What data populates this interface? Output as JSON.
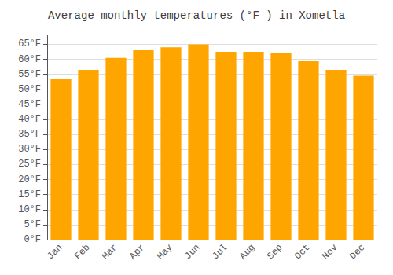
{
  "chart_data": {
    "type": "bar",
    "title": "Average monthly temperatures (°F ) in Xometla",
    "categories": [
      "Jan",
      "Feb",
      "Mar",
      "Apr",
      "May",
      "Jun",
      "Jul",
      "Aug",
      "Sep",
      "Oct",
      "Nov",
      "Dec"
    ],
    "values": [
      53.5,
      56.5,
      60.5,
      63.0,
      64.0,
      65.0,
      62.5,
      62.5,
      62.0,
      59.5,
      56.5,
      54.5
    ],
    "color": "#FFA500",
    "ylim": [
      0,
      68
    ],
    "yticks": [
      {
        "value": 0,
        "label": "0°F"
      },
      {
        "value": 5,
        "label": "5°F"
      },
      {
        "value": 10,
        "label": "10°F"
      },
      {
        "value": 15,
        "label": "15°F"
      },
      {
        "value": 20,
        "label": "20°F"
      },
      {
        "value": 25,
        "label": "25°F"
      },
      {
        "value": 30,
        "label": "30°F"
      },
      {
        "value": 35,
        "label": "35°F"
      },
      {
        "value": 40,
        "label": "40°F"
      },
      {
        "value": 45,
        "label": "45°F"
      },
      {
        "value": 50,
        "label": "50°F"
      },
      {
        "value": 55,
        "label": "55°F"
      },
      {
        "value": 60,
        "label": "60°F"
      },
      {
        "value": 65,
        "label": "65°F"
      }
    ],
    "grid": true
  }
}
